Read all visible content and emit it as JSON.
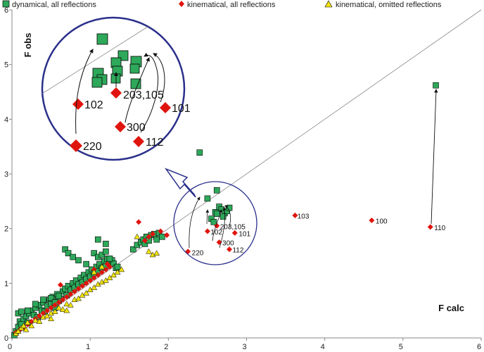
{
  "chart_data": {
    "type": "scatter",
    "title": "",
    "xlabel": "F calc",
    "ylabel": "F obs",
    "xlim": [
      0,
      6
    ],
    "ylim": [
      0,
      6
    ],
    "xticks": [
      "0",
      "1",
      "2",
      "3",
      "4",
      "5",
      "6"
    ],
    "yticks": [
      "0",
      "1",
      "2",
      "3",
      "4",
      "5",
      "6"
    ],
    "grid": false,
    "legend_position": "top",
    "colors": {
      "dynamical": "#2ea85a",
      "kinematical": "#e0140e",
      "omitted": "#f2e40c",
      "circle": "#2a2f8a",
      "diagonal": "#888888"
    },
    "series": [
      {
        "name": "dynamical, all reflections",
        "marker": "square",
        "points": [
          [
            0.03,
            0.05
          ],
          [
            0.05,
            0.12
          ],
          [
            0.08,
            0.2
          ],
          [
            0.1,
            0.3
          ],
          [
            0.12,
            0.25
          ],
          [
            0.15,
            0.35
          ],
          [
            0.18,
            0.4
          ],
          [
            0.2,
            0.28
          ],
          [
            0.22,
            0.45
          ],
          [
            0.25,
            0.5
          ],
          [
            0.28,
            0.42
          ],
          [
            0.3,
            0.55
          ],
          [
            0.33,
            0.38
          ],
          [
            0.35,
            0.6
          ],
          [
            0.38,
            0.5
          ],
          [
            0.4,
            0.65
          ],
          [
            0.42,
            0.48
          ],
          [
            0.45,
            0.58
          ],
          [
            0.48,
            0.7
          ],
          [
            0.5,
            0.62
          ],
          [
            0.52,
            0.75
          ],
          [
            0.55,
            0.55
          ],
          [
            0.58,
            0.8
          ],
          [
            0.6,
            0.68
          ],
          [
            0.62,
            0.72
          ],
          [
            0.65,
            0.85
          ],
          [
            0.68,
            0.9
          ],
          [
            0.7,
            0.78
          ],
          [
            0.72,
            0.95
          ],
          [
            0.75,
            0.88
          ],
          [
            0.78,
            1.0
          ],
          [
            0.8,
            0.92
          ],
          [
            0.82,
            1.05
          ],
          [
            0.85,
            0.98
          ],
          [
            0.88,
            1.1
          ],
          [
            0.9,
            1.02
          ],
          [
            0.92,
            1.15
          ],
          [
            0.95,
            1.08
          ],
          [
            0.98,
            1.2
          ],
          [
            1.0,
            1.12
          ],
          [
            1.02,
            1.25
          ],
          [
            1.05,
            1.18
          ],
          [
            1.08,
            1.3
          ],
          [
            1.1,
            1.22
          ],
          [
            1.12,
            1.35
          ],
          [
            1.15,
            1.28
          ],
          [
            1.18,
            1.4
          ],
          [
            1.2,
            1.32
          ],
          [
            1.22,
            1.45
          ],
          [
            1.25,
            1.38
          ],
          [
            1.28,
            1.42
          ],
          [
            1.3,
            1.36
          ],
          [
            1.33,
            1.28
          ],
          [
            1.35,
            1.3
          ],
          [
            0.68,
            1.62
          ],
          [
            0.72,
            1.55
          ],
          [
            0.78,
            1.48
          ],
          [
            0.85,
            1.42
          ],
          [
            0.95,
            1.35
          ],
          [
            1.05,
            1.55
          ],
          [
            1.1,
            1.48
          ],
          [
            1.15,
            1.52
          ],
          [
            1.2,
            1.58
          ],
          [
            1.25,
            1.45
          ],
          [
            1.1,
            1.8
          ],
          [
            1.2,
            1.72
          ],
          [
            0.08,
            0.45
          ],
          [
            0.12,
            0.48
          ],
          [
            0.2,
            0.5
          ],
          [
            0.3,
            0.62
          ],
          [
            0.4,
            0.7
          ],
          [
            0.5,
            0.73
          ],
          [
            0.55,
            0.65
          ],
          [
            0.6,
            0.77
          ],
          [
            1.55,
            1.62
          ],
          [
            1.6,
            1.7
          ],
          [
            1.65,
            1.75
          ],
          [
            1.68,
            1.8
          ],
          [
            1.72,
            1.85
          ],
          [
            1.78,
            1.88
          ],
          [
            1.82,
            1.9
          ],
          [
            1.88,
            1.92
          ],
          [
            1.92,
            1.85
          ],
          [
            1.7,
            1.72
          ],
          [
            1.75,
            1.78
          ],
          [
            1.85,
            1.8
          ],
          [
            2.5,
            2.55
          ],
          [
            2.62,
            2.7
          ],
          [
            2.55,
            2.18
          ],
          [
            2.6,
            2.3
          ],
          [
            2.65,
            2.4
          ],
          [
            2.68,
            2.35
          ],
          [
            2.72,
            2.28
          ],
          [
            2.75,
            2.32
          ],
          [
            2.78,
            2.38
          ],
          [
            2.62,
            2.27
          ],
          [
            2.58,
            2.12
          ],
          [
            2.7,
            2.22
          ],
          [
            2.4,
            3.39
          ],
          [
            5.42,
            4.62
          ]
        ]
      },
      {
        "name": "kinematical, all reflections",
        "marker": "diamond",
        "points": [
          [
            0.05,
            0.1
          ],
          [
            0.1,
            0.15
          ],
          [
            0.15,
            0.2
          ],
          [
            0.2,
            0.25
          ],
          [
            0.25,
            0.3
          ],
          [
            0.3,
            0.35
          ],
          [
            0.35,
            0.4
          ],
          [
            0.4,
            0.45
          ],
          [
            0.45,
            0.5
          ],
          [
            0.5,
            0.55
          ],
          [
            0.55,
            0.6
          ],
          [
            0.6,
            0.65
          ],
          [
            0.65,
            0.7
          ],
          [
            0.7,
            0.75
          ],
          [
            0.75,
            0.8
          ],
          [
            0.8,
            0.85
          ],
          [
            0.85,
            0.9
          ],
          [
            0.9,
            0.95
          ],
          [
            0.95,
            1.0
          ],
          [
            1.0,
            1.05
          ],
          [
            1.05,
            1.1
          ],
          [
            1.1,
            1.15
          ],
          [
            1.15,
            1.2
          ],
          [
            1.2,
            1.25
          ],
          [
            1.25,
            1.3
          ],
          [
            0.62,
            0.97
          ],
          [
            1.05,
            1.25
          ],
          [
            1.22,
            1.35
          ],
          [
            1.62,
            2.12
          ],
          [
            1.7,
            1.78
          ],
          [
            1.75,
            1.85
          ],
          [
            1.8,
            1.9
          ],
          [
            1.9,
            1.95
          ],
          [
            1.98,
            1.88
          ],
          [
            2.25,
            1.58
          ],
          [
            2.5,
            1.95
          ],
          [
            2.62,
            2.05
          ],
          [
            2.65,
            1.75
          ],
          [
            2.78,
            1.62
          ],
          [
            2.85,
            1.92
          ],
          [
            3.62,
            2.24
          ],
          [
            4.6,
            2.15
          ],
          [
            5.35,
            2.03
          ]
        ]
      },
      {
        "name": "kinematical, omitted reflections",
        "marker": "triangle",
        "points": [
          [
            0.05,
            0.08
          ],
          [
            0.08,
            0.12
          ],
          [
            0.12,
            0.18
          ],
          [
            0.15,
            0.22
          ],
          [
            0.18,
            0.15
          ],
          [
            0.2,
            0.28
          ],
          [
            0.25,
            0.22
          ],
          [
            0.3,
            0.32
          ],
          [
            0.35,
            0.3
          ],
          [
            0.4,
            0.38
          ],
          [
            0.45,
            0.4
          ],
          [
            0.5,
            0.45
          ],
          [
            0.55,
            0.48
          ],
          [
            0.6,
            0.55
          ],
          [
            0.65,
            0.52
          ],
          [
            0.7,
            0.62
          ],
          [
            0.75,
            0.6
          ],
          [
            0.8,
            0.7
          ],
          [
            0.85,
            0.72
          ],
          [
            0.9,
            0.78
          ],
          [
            0.95,
            0.82
          ],
          [
            1.0,
            0.88
          ],
          [
            1.05,
            0.92
          ],
          [
            1.1,
            0.98
          ],
          [
            1.15,
            1.02
          ],
          [
            1.2,
            1.05
          ],
          [
            1.25,
            1.1
          ],
          [
            1.3,
            1.15
          ],
          [
            1.35,
            1.2
          ],
          [
            1.4,
            1.25
          ],
          [
            1.6,
            1.85
          ],
          [
            1.75,
            1.58
          ],
          [
            1.8,
            1.52
          ],
          [
            1.85,
            1.55
          ],
          [
            1.05,
            1.2
          ],
          [
            1.15,
            1.3
          ],
          [
            0.5,
            0.35
          ],
          [
            0.7,
            0.5
          ]
        ]
      }
    ],
    "point_labels": [
      {
        "text": "103",
        "x": 3.65,
        "y": 2.22
      },
      {
        "text": "100",
        "x": 4.65,
        "y": 2.13
      },
      {
        "text": "110",
        "x": 5.4,
        "y": 2.01
      },
      {
        "text": "220",
        "x": 2.3,
        "y": 1.55
      },
      {
        "text": "102",
        "x": 2.54,
        "y": 1.93
      },
      {
        "text": "203,105",
        "x": 2.66,
        "y": 2.03
      },
      {
        "text": "300",
        "x": 2.69,
        "y": 1.73
      },
      {
        "text": "112",
        "x": 2.82,
        "y": 1.6
      },
      {
        "text": "101",
        "x": 2.9,
        "y": 1.9
      }
    ],
    "annotations": {
      "zoom_labels": [
        "220",
        "102",
        "203,105",
        "300",
        "112",
        "101"
      ]
    }
  }
}
